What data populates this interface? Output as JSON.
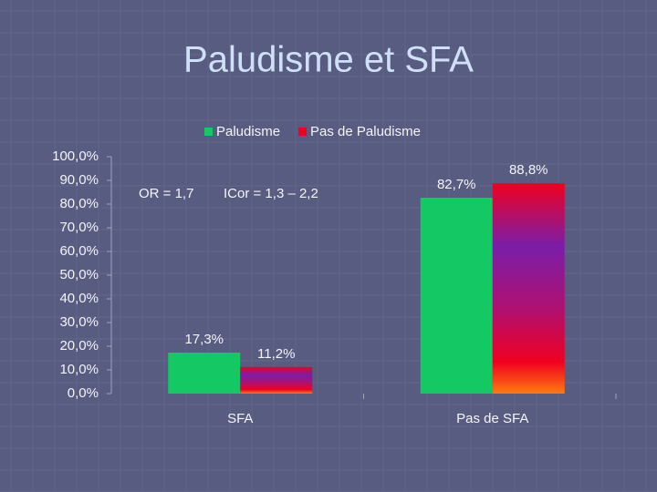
{
  "chart_data": {
    "type": "bar",
    "title": "Paludisme et SFA",
    "categories": [
      "SFA",
      "Pas de SFA"
    ],
    "series": [
      {
        "name": "Paludisme",
        "color": "#14c864",
        "values": [
          17.3,
          82.7
        ],
        "value_labels": [
          "17,3%",
          "82,7%"
        ]
      },
      {
        "name": "Pas de Paludisme",
        "color": "#f00020",
        "values": [
          11.2,
          88.8
        ],
        "value_labels": [
          "11,2%",
          "88,8%"
        ]
      }
    ],
    "ylim": [
      0,
      100
    ],
    "yticks": [
      {
        "value": 0,
        "label": "0,0%"
      },
      {
        "value": 10,
        "label": "10,0%"
      },
      {
        "value": 20,
        "label": "20,0%"
      },
      {
        "value": 30,
        "label": "30,0%"
      },
      {
        "value": 40,
        "label": "40,0%"
      },
      {
        "value": 50,
        "label": "50,0%"
      },
      {
        "value": 60,
        "label": "60,0%"
      },
      {
        "value": 70,
        "label": "70,0%"
      },
      {
        "value": 80,
        "label": "80,0%"
      },
      {
        "value": 90,
        "label": "90,0%"
      },
      {
        "value": 100,
        "label": "100,0%"
      }
    ],
    "annotations": [
      "OR = 1,7",
      "ICor = 1,3 – 2,2"
    ]
  }
}
